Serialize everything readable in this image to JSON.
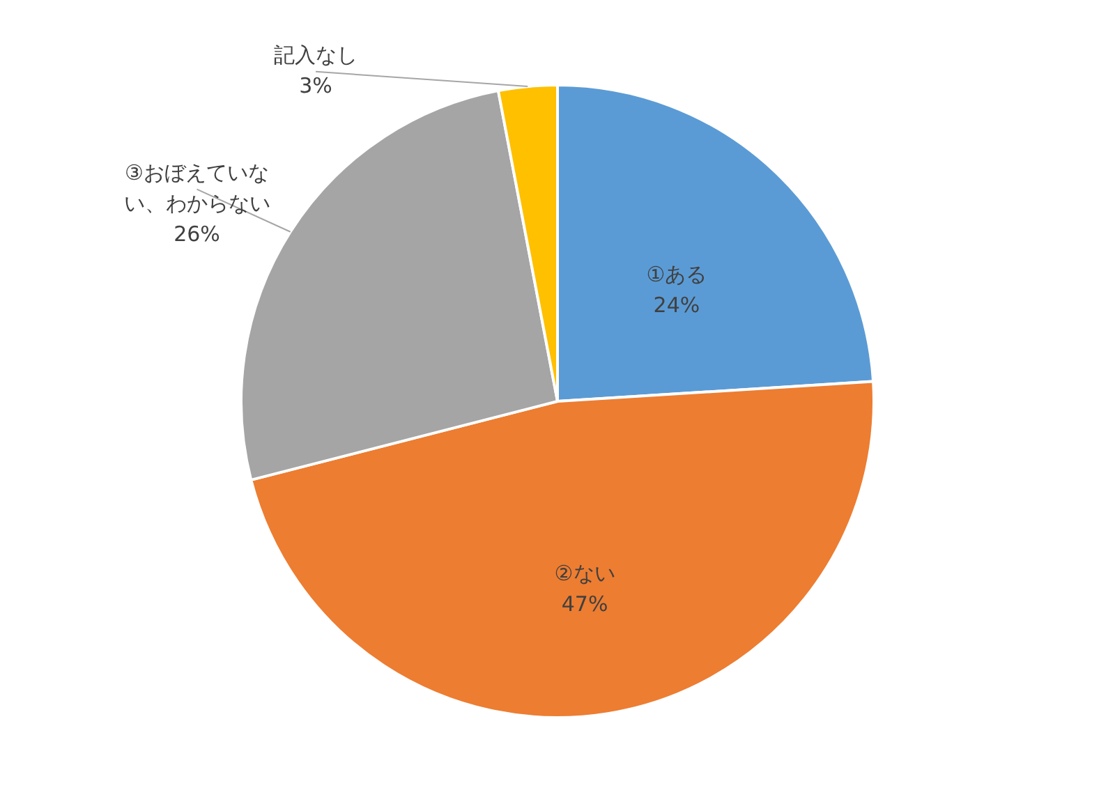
{
  "chart_data": {
    "type": "pie",
    "categories": [
      "①ある",
      "②ない",
      "③おぼえていない、わからない",
      "記入なし"
    ],
    "values": [
      24,
      47,
      26,
      3
    ],
    "colors": [
      "#5b9bd5",
      "#ed7d31",
      "#a5a5a5",
      "#ffc000"
    ],
    "value_labels": [
      "24%",
      "47%",
      "26%",
      "3%"
    ]
  }
}
